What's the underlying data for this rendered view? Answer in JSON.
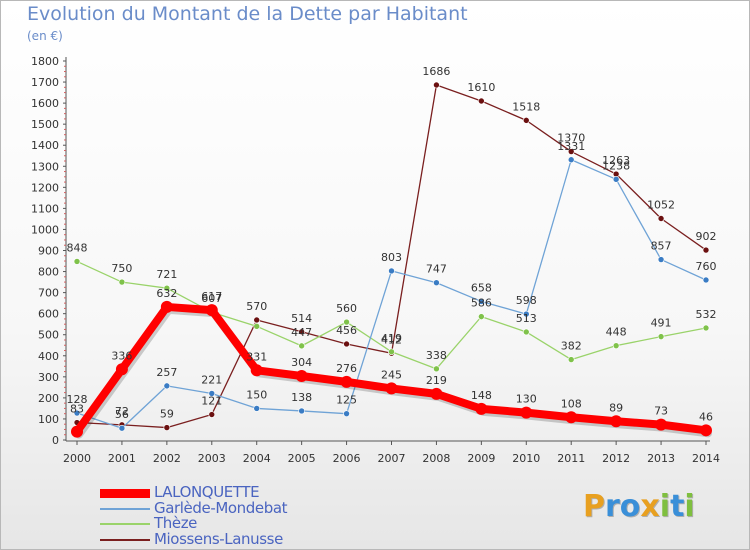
{
  "header": {
    "title": "Evolution du Montant de la Dette par Habitant",
    "unit": "(en €)"
  },
  "logo": {
    "letters": [
      "P",
      "r",
      "o",
      "x",
      "i",
      "t",
      "i"
    ],
    "colors": [
      "#e8a020",
      "#3a8fd8",
      "#3a8fd8",
      "#e8a020",
      "#7fbf3f",
      "#3a8fd8",
      "#7fbf3f"
    ]
  },
  "chart_data": {
    "type": "line",
    "x": [
      2000,
      2001,
      2002,
      2003,
      2004,
      2005,
      2006,
      2007,
      2008,
      2009,
      2010,
      2011,
      2012,
      2013,
      2014
    ],
    "ylim": [
      0,
      1800
    ],
    "yticks": [
      0,
      100,
      200,
      300,
      400,
      500,
      600,
      700,
      800,
      900,
      1000,
      1100,
      1200,
      1300,
      1400,
      1500,
      1600,
      1700,
      1800
    ],
    "grid": false,
    "legend_position": "bottom-left",
    "series": [
      {
        "name": "Miossens-Lanusse",
        "color": "#7a1f1f",
        "marker": "#6b1010",
        "width": 1.3,
        "values": [
          83,
          72,
          59,
          121,
          570,
          514,
          456,
          412,
          1686,
          1610,
          1518,
          1370,
          1263,
          1052,
          902
        ],
        "labels": [
          "83",
          "72",
          "59",
          "121",
          "570",
          "514",
          "456",
          "412",
          "1686",
          "1610",
          "1518",
          "1370",
          "1263",
          "1052",
          "902"
        ]
      },
      {
        "name": "Thèze",
        "color": "#9ad36a",
        "marker": "#7fc24a",
        "width": 1.3,
        "values": [
          848,
          750,
          721,
          607,
          540,
          447,
          560,
          419,
          338,
          586,
          513,
          382,
          448,
          491,
          532
        ],
        "labels": [
          "848",
          "750",
          "721",
          "607",
          "",
          "447",
          "560",
          "419",
          "338",
          "586",
          "513",
          "382",
          "448",
          "491",
          "532"
        ]
      },
      {
        "name": "Garlède-Mondebat",
        "color": "#6fa3d6",
        "marker": "#3a7cc4",
        "width": 1.3,
        "values": [
          128,
          56,
          257,
          221,
          150,
          138,
          125,
          803,
          747,
          658,
          598,
          1331,
          1238,
          857,
          760
        ],
        "labels": [
          "128",
          "56",
          "257",
          "221",
          "150",
          "138",
          "125",
          "803",
          "747",
          "658",
          "598",
          "1331",
          "1238",
          "857",
          "760"
        ]
      },
      {
        "name": "LALONQUETTE",
        "color": "#ff0000",
        "marker": "#ff0000",
        "width": 8,
        "values": [
          40,
          336,
          632,
          617,
          331,
          304,
          276,
          245,
          219,
          148,
          130,
          108,
          89,
          73,
          46
        ],
        "labels": [
          "",
          "336",
          "632",
          "617",
          "331",
          "304",
          "276",
          "245",
          "219",
          "148",
          "130",
          "108",
          "89",
          "73",
          "46"
        ]
      }
    ]
  }
}
